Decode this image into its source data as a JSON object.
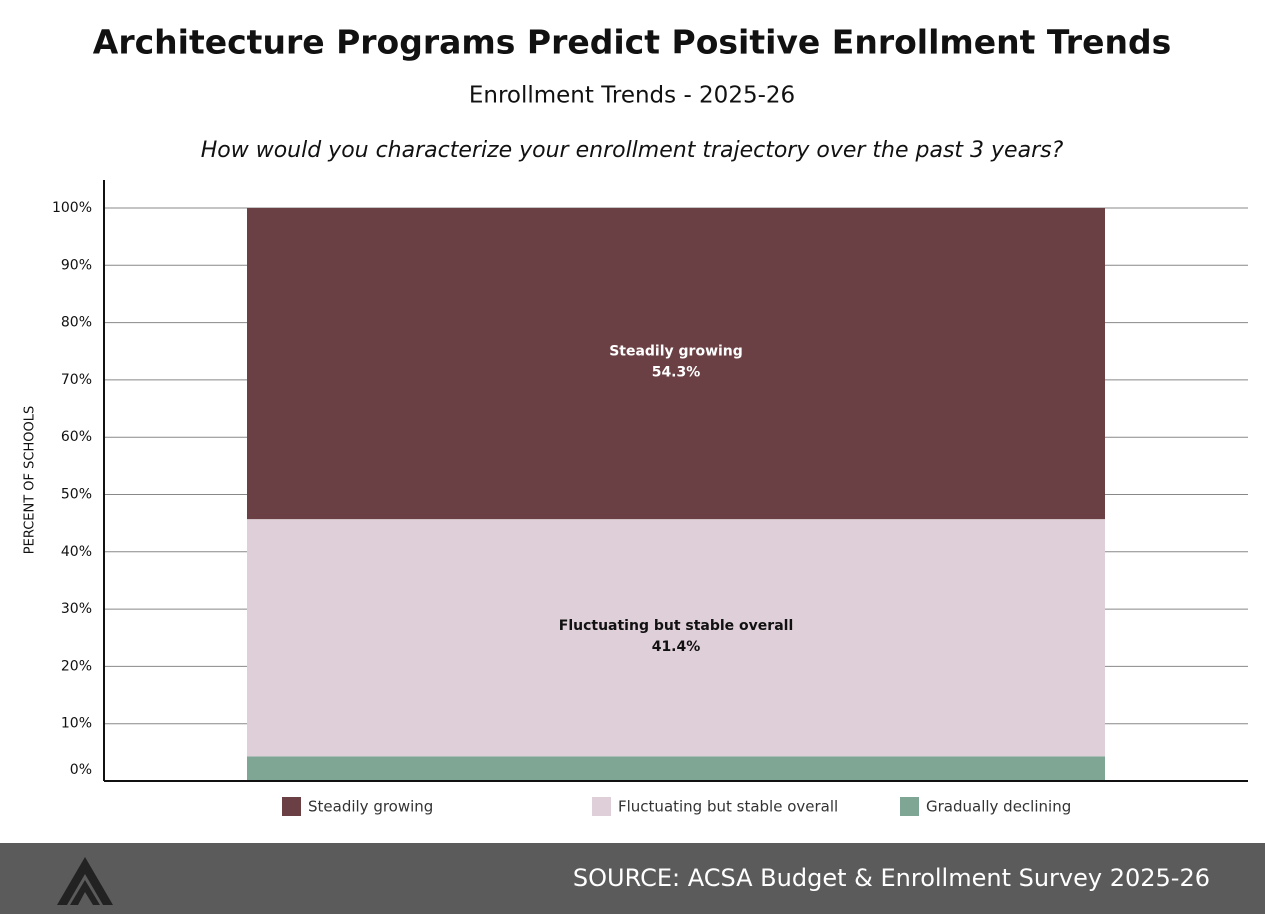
{
  "chart_data": {
    "type": "stacked_bar",
    "title": "Architecture Programs Predict Positive Enrollment Trends",
    "subtitle": "Enrollment Trends - 2025-26",
    "question": "How would you characterize your enrollment trajectory over the past 3 years?",
    "y_label": "PERCENT OF SCHOOLS",
    "categories": [
      null
    ],
    "series": [
      {
        "name": "Steadily growing",
        "color": "#6b4044",
        "values": [
          54.3
        ],
        "value_labels": [
          "54.3%"
        ]
      },
      {
        "name": "Fluctuating but stable overall",
        "color": "#dfcfd8",
        "values": [
          41.4
        ],
        "value_labels": [
          "41.4%"
        ]
      },
      {
        "name": "Gradually declining",
        "color": "#7fa595",
        "values": [
          4.3
        ]
      }
    ],
    "ylim": [
      0,
      100
    ],
    "yticks": [
      {
        "value": 0,
        "label": "0%"
      },
      {
        "value": 10,
        "label": "10%"
      },
      {
        "value": 20,
        "label": "20%"
      },
      {
        "value": 30,
        "label": "30%"
      },
      {
        "value": 40,
        "label": "40%"
      },
      {
        "value": 50,
        "label": "50%"
      },
      {
        "value": 60,
        "label": "60%"
      },
      {
        "value": 70,
        "label": "70%"
      },
      {
        "value": 80,
        "label": "80%"
      },
      {
        "value": 90,
        "label": "90%"
      },
      {
        "value": 100,
        "label": "100%"
      }
    ],
    "grid": true,
    "legend": "bottom",
    "source": "SOURCE: ACSA Budget & Enrollment Survey 2025-26"
  }
}
